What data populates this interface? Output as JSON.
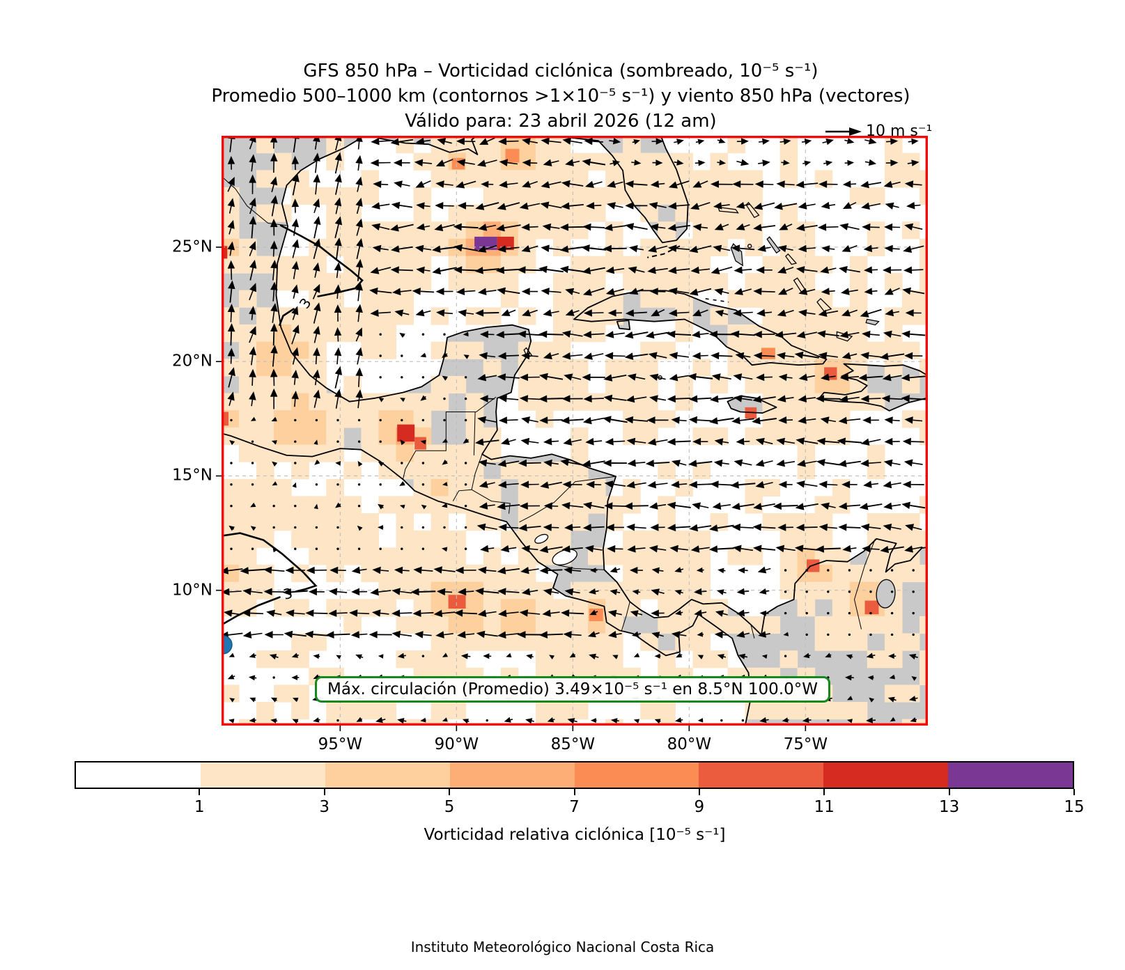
{
  "title": {
    "line1": "GFS 850 hPa – Vorticidad ciclónica (sombreado, 10⁻⁵ s⁻¹)",
    "line2": "Promedio 500–1000 km (contornos >1×10⁻⁵ s⁻¹) y viento 850 hPa (vectores)",
    "line3": "Válido para: 23 abril 2026 (12 am)"
  },
  "quiver_key": {
    "label": "10 m s⁻¹"
  },
  "axes": {
    "x_ticks": [
      {
        "label": "95°W",
        "lon": -95
      },
      {
        "label": "90°W",
        "lon": -90
      },
      {
        "label": "85°W",
        "lon": -85
      },
      {
        "label": "80°W",
        "lon": -80
      },
      {
        "label": "75°W",
        "lon": -75
      }
    ],
    "y_ticks": [
      {
        "label": "25°N",
        "lat": 25
      },
      {
        "label": "20°N",
        "lat": 20
      },
      {
        "label": "15°N",
        "lat": 15
      },
      {
        "label": "10°N",
        "lat": 10
      }
    ],
    "frame_color": "#f00a0a",
    "grid_color": "#bdbdbd",
    "land_color": "#c9c9c9",
    "ocean_color": "#ffffff",
    "coast_color": "#000000"
  },
  "annotation": {
    "text": "Máx. circulación (Promedio) 3.49×10⁻⁵ s⁻¹ en 8.5°N 100.0°W",
    "border_color": "#17881b"
  },
  "colorbar": {
    "label": "Vorticidad relativa ciclónica [10⁻⁵ s⁻¹]",
    "tick_values": [
      1,
      3,
      5,
      7,
      9,
      11,
      13,
      15
    ],
    "levels": [
      0,
      1,
      3,
      5,
      7,
      9,
      11,
      13,
      15
    ],
    "colors": [
      "#ffffff",
      "#fde5c6",
      "#fdd09e",
      "#fdae76",
      "#fb8c54",
      "#ea5c3d",
      "#d52b20",
      "#7b3794"
    ]
  },
  "footer": "Instituto Meteorológico Nacional Costa Rica",
  "chart_data": {
    "type": "heatmap",
    "title": "GFS 850 hPa – Vorticidad ciclónica (sombreado, 10⁻⁵ s⁻¹); Promedio 500–1000 km (contornos >1×10⁻⁵ s⁻¹) y viento 850 hPa (vectores); Válido para: 23 abril 2026 (12 am)",
    "extent": {
      "lon_min": -100.1,
      "lon_max": -69.8,
      "lat_min": 4.1,
      "lat_max": 29.9
    },
    "units": "10⁻⁵ s⁻¹",
    "colormap_levels": [
      0,
      1,
      3,
      5,
      7,
      9,
      11,
      13,
      15
    ],
    "max_circulation": {
      "value": 3.49,
      "value_text": "3.49×10⁻⁵ s⁻¹",
      "lat_text": "8.5°N",
      "lon_text": "100.0°W",
      "marker_color": "#1f77b4"
    },
    "wind_reference": {
      "value": 10,
      "label": "10 m s⁻¹"
    },
    "contour_labels": [
      {
        "text": "3",
        "lon": -96.5,
        "lat": 22.55,
        "rot": -55
      },
      {
        "text": "3",
        "lon": -97.25,
        "lat": 9.85,
        "rot": -14
      }
    ],
    "wind_pattern": "Alisios del este sobre el Caribe y Atlántico; componente sur sobre el oeste del Golfo de México; vientos débiles sobre el interior de Centroamérica",
    "highlight_cells": [
      {
        "lon": -89.23,
        "lat": 25.46,
        "w": 0.98,
        "h": 0.58,
        "level": 7
      },
      {
        "lon": -88.25,
        "lat": 25.46,
        "w": 0.72,
        "h": 0.58,
        "level": 6
      },
      {
        "lon": -92.55,
        "lat": 17.25,
        "w": 0.75,
        "h": 0.75,
        "level": 6
      },
      {
        "lon": -91.8,
        "lat": 16.7,
        "w": 0.5,
        "h": 0.55,
        "level": 5
      },
      {
        "lon": -100.1,
        "lat": 25.05,
        "w": 0.25,
        "h": 0.55,
        "level": 6
      },
      {
        "lon": -100.1,
        "lat": 17.8,
        "w": 0.3,
        "h": 0.6,
        "level": 5
      },
      {
        "lon": -72.45,
        "lat": 9.55,
        "w": 0.6,
        "h": 0.6,
        "level": 5
      },
      {
        "lon": -74.95,
        "lat": 11.35,
        "w": 0.55,
        "h": 0.55,
        "level": 5
      },
      {
        "lon": -90.35,
        "lat": 9.8,
        "w": 0.75,
        "h": 0.6,
        "level": 5
      },
      {
        "lon": -84.3,
        "lat": 9.2,
        "w": 0.6,
        "h": 0.55,
        "level": 4
      },
      {
        "lon": -74.2,
        "lat": 19.75,
        "w": 0.55,
        "h": 0.55,
        "level": 5
      },
      {
        "lon": -76.9,
        "lat": 20.6,
        "w": 0.6,
        "h": 0.5,
        "level": 4
      },
      {
        "lon": -77.6,
        "lat": 18.0,
        "w": 0.5,
        "h": 0.5,
        "level": 5
      },
      {
        "lon": -87.9,
        "lat": 29.3,
        "w": 0.6,
        "h": 0.6,
        "level": 4
      },
      {
        "lon": -90.2,
        "lat": 28.9,
        "w": 0.55,
        "h": 0.5,
        "level": 4
      }
    ],
    "hotspots": [
      {
        "lon": -88.8,
        "lat": 25.2,
        "s": 6.0,
        "r": 1.1
      },
      {
        "lon": -87.6,
        "lat": 29.2,
        "s": 4.0,
        "r": 1.2
      },
      {
        "lon": -90.0,
        "lat": 28.9,
        "s": 3.5,
        "r": 1.0
      },
      {
        "lon": -93.0,
        "lat": 24.3,
        "s": 2.6,
        "r": 1.4
      },
      {
        "lon": -97.6,
        "lat": 20.3,
        "s": 4.5,
        "r": 1.1
      },
      {
        "lon": -96.8,
        "lat": 17.3,
        "s": 4.5,
        "r": 1.2
      },
      {
        "lon": -92.3,
        "lat": 16.9,
        "s": 6.5,
        "r": 0.8
      },
      {
        "lon": -90.5,
        "lat": 14.6,
        "s": 3.2,
        "r": 1.1
      },
      {
        "lon": -89.9,
        "lat": 9.4,
        "s": 5.0,
        "r": 1.2
      },
      {
        "lon": -87.4,
        "lat": 9.0,
        "s": 4.0,
        "r": 1.1
      },
      {
        "lon": -84.2,
        "lat": 8.8,
        "s": 3.4,
        "r": 1.0
      },
      {
        "lon": -81.1,
        "lat": 11.3,
        "s": 2.6,
        "r": 1.3
      },
      {
        "lon": -76.4,
        "lat": 20.2,
        "s": 3.0,
        "r": 1.3
      },
      {
        "lon": -73.9,
        "lat": 19.4,
        "s": 4.6,
        "r": 1.0
      },
      {
        "lon": -74.9,
        "lat": 11.0,
        "s": 4.6,
        "r": 0.9
      },
      {
        "lon": -72.4,
        "lat": 9.4,
        "s": 4.2,
        "r": 1.0
      },
      {
        "lon": -78.6,
        "lat": 26.9,
        "s": 2.8,
        "r": 1.3
      },
      {
        "lon": -80.9,
        "lat": 23.9,
        "s": 3.0,
        "r": 1.1
      },
      {
        "lon": -100.0,
        "lat": 24.8,
        "s": 4.0,
        "r": 0.8
      },
      {
        "lon": -100.0,
        "lat": 17.4,
        "s": 4.0,
        "r": 0.8
      },
      {
        "lon": -85.6,
        "lat": 13.9,
        "s": 2.4,
        "r": 1.4
      },
      {
        "lon": -71.3,
        "lat": 12.0,
        "s": 3.0,
        "r": 0.9
      },
      {
        "lon": -84.9,
        "lat": 6.3,
        "s": 2.6,
        "r": 1.3
      },
      {
        "lon": -90.5,
        "lat": 6.0,
        "s": 2.4,
        "r": 1.2
      },
      {
        "lon": -79.9,
        "lat": 8.9,
        "s": 2.6,
        "r": 0.9
      },
      {
        "lon": -93.6,
        "lat": 21.6,
        "s": 2.5,
        "r": 1.0
      },
      {
        "lon": -86.0,
        "lat": 19.3,
        "s": 2.6,
        "r": 1.2
      },
      {
        "lon": -82.5,
        "lat": 19.0,
        "s": 2.6,
        "r": 1.0
      },
      {
        "lon": -75.5,
        "lat": 17.5,
        "s": 2.5,
        "r": 1.1
      },
      {
        "lon": -84.5,
        "lat": 23.0,
        "s": 2.5,
        "r": 1.0
      },
      {
        "lon": -95.0,
        "lat": 12.5,
        "s": 2.6,
        "r": 1.2
      },
      {
        "lon": -92.0,
        "lat": 11.0,
        "s": 2.8,
        "r": 1.0
      },
      {
        "lon": -85.5,
        "lat": 27.0,
        "s": 2.5,
        "r": 1.2
      },
      {
        "lon": -82.0,
        "lat": 27.8,
        "s": 2.6,
        "r": 1.0
      },
      {
        "lon": -75.8,
        "lat": 23.5,
        "s": 2.5,
        "r": 1.0
      },
      {
        "lon": -99.0,
        "lat": 13.5,
        "s": 2.6,
        "r": 1.0
      },
      {
        "lon": -99.5,
        "lat": 10.5,
        "s": 3.2,
        "r": 1.0
      }
    ]
  }
}
